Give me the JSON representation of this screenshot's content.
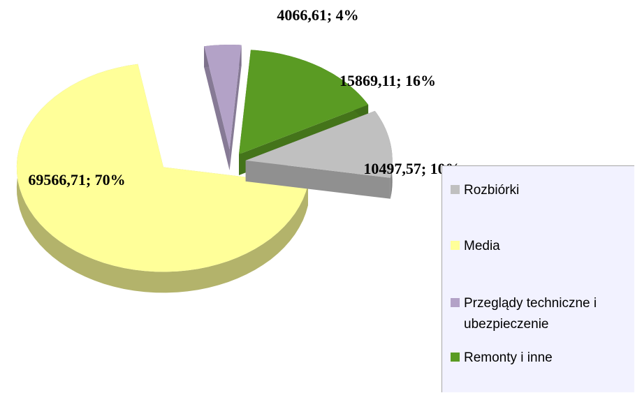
{
  "chart_data": {
    "type": "pie",
    "categories": [
      "Rozbiórki",
      "Media",
      "Przeglądy techniczne i ubezpieczenie",
      "Remonty i inne"
    ],
    "values": [
      10497.57,
      69566.71,
      4066.61,
      15869.11
    ],
    "value_labels": [
      "10497,57; 10%",
      "69566,71; 70%",
      "4066,61; 4%",
      "15869,11; 16%"
    ],
    "colors": [
      "#c0c0c0",
      "#ffff99",
      "#b3a2c7",
      "#5a9b23"
    ],
    "legend": "right"
  }
}
